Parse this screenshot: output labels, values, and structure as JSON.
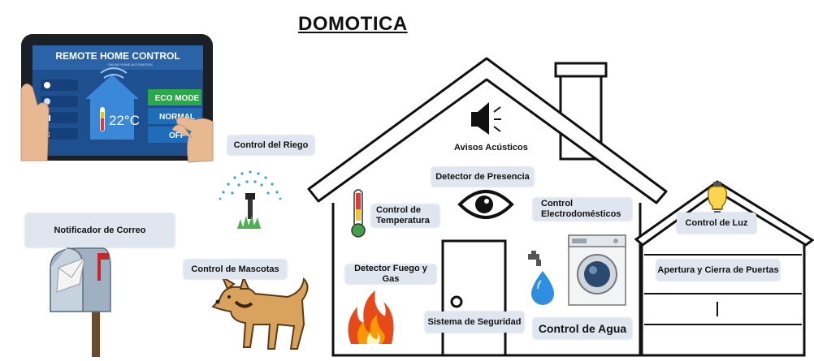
{
  "title": "DOMOTICA",
  "tablet": {
    "heading": "REMOTE HOME CONTROL",
    "subheading": "ONLINE HOME AUTOMATION",
    "temperature": "22°C",
    "modes": [
      "ECO MODE",
      "NORMAL",
      "OFF"
    ]
  },
  "labels": {
    "riego": "Control del Riego",
    "correo": "Notificador de Correo",
    "mascotas": "Control de Mascotas",
    "avisos": "Avisos Acústicos",
    "presencia": "Detector de Presencia",
    "temperatura": "Control de Temperatura",
    "electro": "Control Electrodomésticos",
    "luz": "Control de Luz",
    "fuego": "Detector Fuego y Gas",
    "puertas": "Apertura y Cierra de Puertas",
    "seguridad": "Sistema de Seguridad",
    "agua": "Control de Agua"
  }
}
